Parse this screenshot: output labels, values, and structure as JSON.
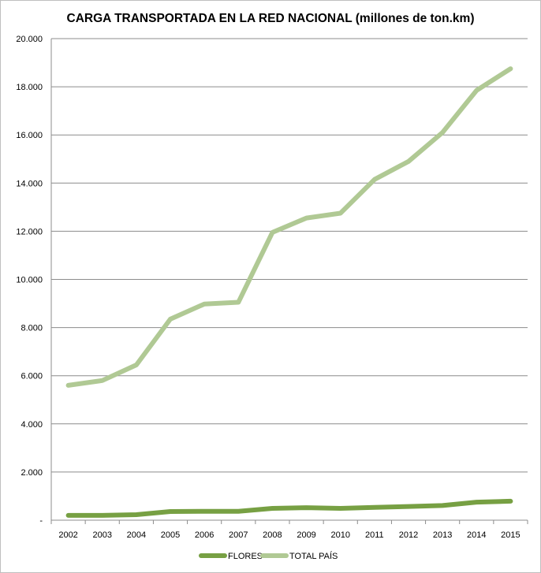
{
  "chart_data": {
    "type": "line",
    "title": "CARGA TRANSPORTADA EN LA RED NACIONAL (millones de ton.km)",
    "xlabel": "",
    "ylabel": "",
    "categories": [
      "2002",
      "2003",
      "2004",
      "2005",
      "2006",
      "2007",
      "2008",
      "2009",
      "2010",
      "2011",
      "2012",
      "2013",
      "2014",
      "2015"
    ],
    "ylim": [
      0,
      20000
    ],
    "y_ticks": [
      0,
      2000,
      4000,
      6000,
      8000,
      10000,
      12000,
      14000,
      16000,
      18000,
      20000
    ],
    "y_tick_labels": [
      "-",
      "2.000",
      "4.000",
      "6.000",
      "8.000",
      "10.000",
      "12.000",
      "14.000",
      "16.000",
      "18.000",
      "20.000"
    ],
    "grid": true,
    "legend_position": "bottom",
    "series": [
      {
        "name": "FLORES",
        "color": "#77a043",
        "values": [
          200,
          200,
          230,
          360,
          370,
          370,
          490,
          520,
          490,
          530,
          570,
          610,
          750,
          790
        ]
      },
      {
        "name": "TOTAL PAÍS",
        "color": "#b0c994",
        "values": [
          5600,
          5800,
          6450,
          8350,
          8980,
          9050,
          11950,
          12550,
          12750,
          14150,
          14900,
          16100,
          17850,
          18750
        ]
      }
    ]
  }
}
